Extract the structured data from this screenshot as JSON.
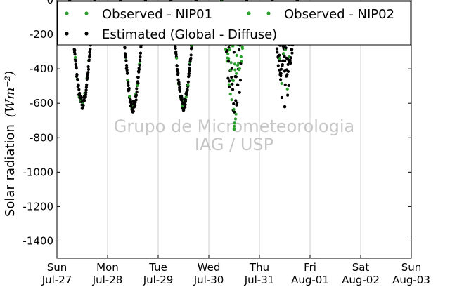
{
  "chart_data": {
    "type": "scatter",
    "ylabel": "Solar radiation",
    "ylabel_unit": "(Wm⁻²)",
    "ylim": [
      -1500,
      0
    ],
    "yticks": [
      0,
      -200,
      -400,
      -600,
      -800,
      -1000,
      -1200,
      -1400
    ],
    "xlim_days": [
      0,
      7
    ],
    "xticks": [
      {
        "day": 0,
        "weekday": "Sun",
        "date": "Jul-27"
      },
      {
        "day": 1,
        "weekday": "Mon",
        "date": "Jul-28"
      },
      {
        "day": 2,
        "weekday": "Tue",
        "date": "Jul-29"
      },
      {
        "day": 3,
        "weekday": "Wed",
        "date": "Jul-30"
      },
      {
        "day": 4,
        "weekday": "Thu",
        "date": "Jul-31"
      },
      {
        "day": 5,
        "weekday": "Fri",
        "date": "Aug-01"
      },
      {
        "day": 6,
        "weekday": "Sat",
        "date": "Aug-02"
      },
      {
        "day": 7,
        "weekday": "Sun",
        "date": "Aug-03"
      }
    ],
    "grid": "vertical",
    "legend_position": "top",
    "series": [
      {
        "name": "Observed - NIP01",
        "color": "#2ca02c",
        "marker": "dot"
      },
      {
        "name": "Observed - NIP02",
        "color": "#2ca02c",
        "marker": "dot"
      },
      {
        "name": "Estimated (Global - Diffuse)",
        "color": "#000000",
        "marker": "dot"
      }
    ],
    "daily_minima": [
      {
        "day": "Jul-27",
        "min": -630,
        "series": "Estimated (Global - Diffuse)"
      },
      {
        "day": "Jul-28",
        "min": -650,
        "series": "Estimated (Global - Diffuse)"
      },
      {
        "day": "Jul-29",
        "min": -640,
        "series": "Estimated (Global - Diffuse)"
      },
      {
        "day": "Jul-30",
        "min": -750,
        "series": "Observed - NIP01"
      },
      {
        "day": "Jul-31",
        "min": -620,
        "series": "Estimated (Global - Diffuse)"
      }
    ],
    "watermark": [
      "Grupo de Micrometeorologia",
      "IAG / USP"
    ]
  }
}
